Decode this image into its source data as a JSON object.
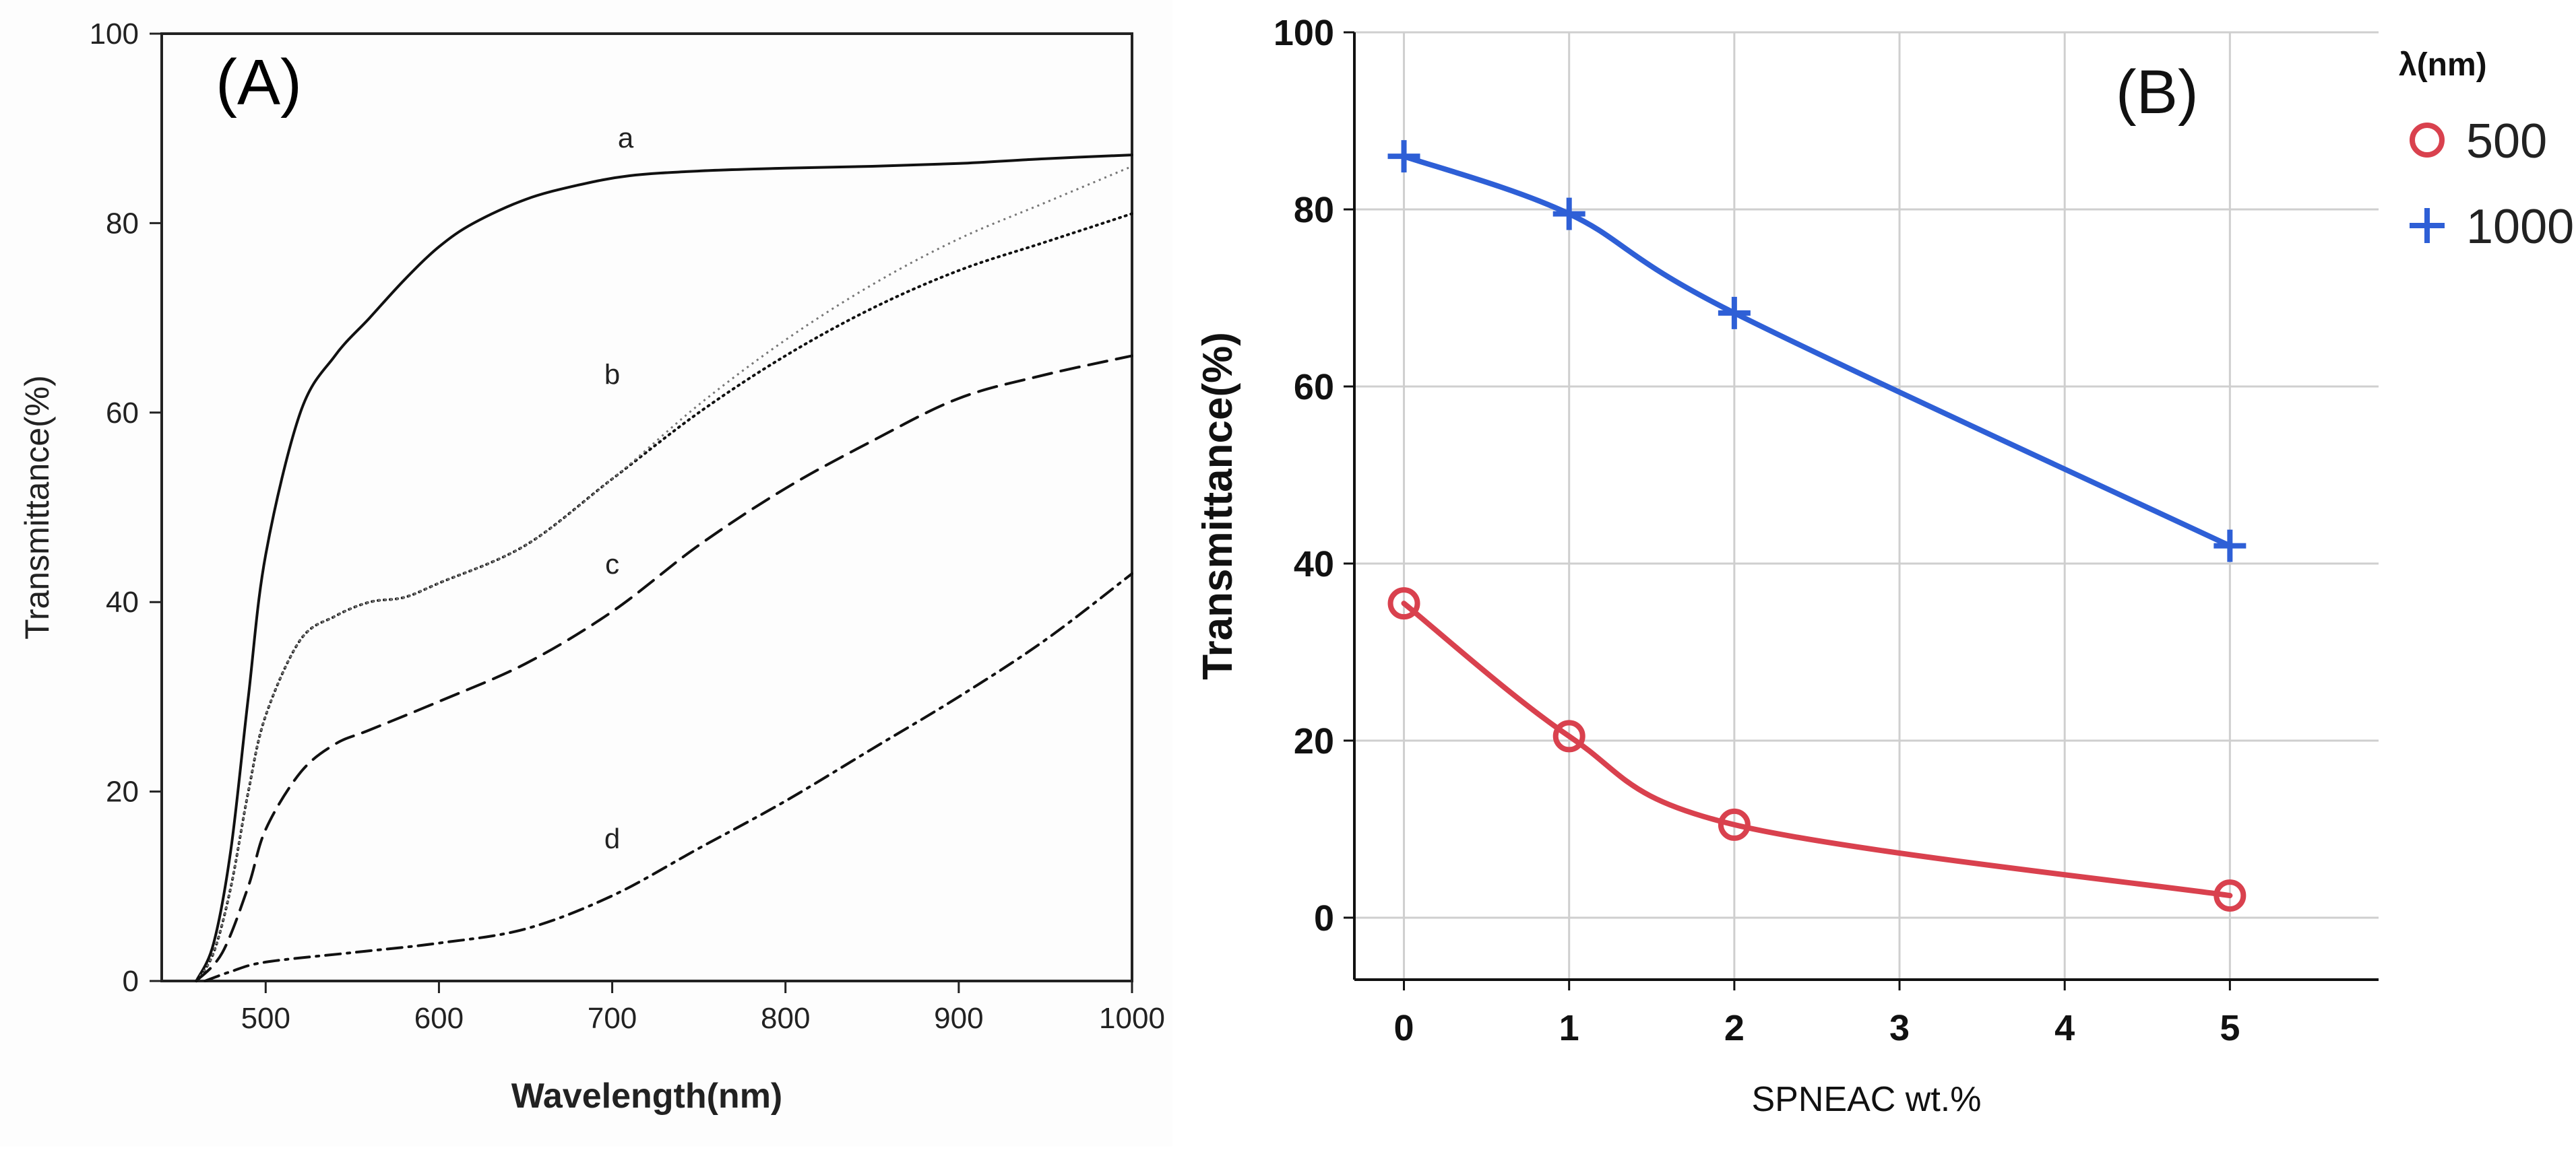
{
  "chart_data": [
    {
      "type": "line",
      "panel_label": "(A)",
      "xlabel": "Wavelength(nm)",
      "ylabel": "Transmittance(%)",
      "xlim": [
        440,
        1000
      ],
      "ylim": [
        0,
        100
      ],
      "x_ticks": [
        "500",
        "600",
        "700",
        "800",
        "900",
        "1000"
      ],
      "y_ticks": [
        "0",
        "20",
        "40",
        "60",
        "80",
        "100"
      ],
      "grid": false,
      "series": [
        {
          "name": "a",
          "style": "solid",
          "x": [
            460,
            470,
            480,
            490,
            500,
            520,
            540,
            560,
            580,
            600,
            620,
            650,
            680,
            710,
            750,
            800,
            850,
            900,
            950,
            1000
          ],
          "y": [
            0,
            4,
            14,
            30,
            45,
            60,
            66,
            70,
            74,
            77.5,
            80,
            82.5,
            84,
            85,
            85.5,
            85.8,
            86,
            86.3,
            86.8,
            87.2
          ]
        },
        {
          "name": "b",
          "style": "dotted",
          "x": [
            460,
            470,
            480,
            490,
            500,
            520,
            540,
            560,
            580,
            600,
            650,
            700,
            750,
            800,
            850,
            900,
            950,
            1000
          ],
          "y": [
            0,
            3,
            10,
            20,
            28,
            36,
            38.5,
            40,
            40.5,
            42,
            46,
            53,
            60,
            66,
            71,
            75,
            78,
            81
          ]
        },
        {
          "name": "c",
          "style": "dashed",
          "x": [
            460,
            475,
            490,
            500,
            520,
            540,
            560,
            600,
            650,
            700,
            750,
            800,
            850,
            900,
            950,
            1000
          ],
          "y": [
            0,
            3,
            10,
            16,
            22,
            25,
            26.5,
            29.5,
            33.5,
            39,
            46,
            52,
            57,
            61.5,
            64,
            66
          ]
        },
        {
          "name": "d",
          "style": "dash-dot",
          "x": [
            465,
            480,
            500,
            550,
            600,
            650,
            700,
            750,
            800,
            850,
            900,
            950,
            1000
          ],
          "y": [
            0,
            1,
            2,
            3,
            4,
            5.5,
            9,
            14,
            19,
            24.5,
            30,
            36,
            43
          ]
        }
      ],
      "curve_labels": [
        "a",
        "b",
        "c",
        "d"
      ]
    },
    {
      "type": "line",
      "panel_label": "(B)",
      "xlabel": "SPNEAC wt.%",
      "ylabel": "Transmittance(%)",
      "xlim": [
        -0.3,
        5.9
      ],
      "ylim": [
        -7,
        100
      ],
      "x_ticks": [
        "0",
        "1",
        "2",
        "3",
        "4",
        "5"
      ],
      "y_ticks": [
        "0",
        "20",
        "40",
        "60",
        "80",
        "100"
      ],
      "grid": true,
      "legend": {
        "title": "λ(nm)",
        "placement": "right"
      },
      "series": [
        {
          "name": "500",
          "marker": "circle",
          "color": "#d9414e",
          "x": [
            0,
            1,
            2,
            5
          ],
          "y": [
            35.5,
            20.5,
            10.5,
            2.5
          ]
        },
        {
          "name": "1000",
          "marker": "plus",
          "color": "#2e5fd6",
          "x": [
            0,
            1,
            2,
            5
          ],
          "y": [
            86,
            79.5,
            68.3,
            42
          ]
        }
      ]
    }
  ]
}
